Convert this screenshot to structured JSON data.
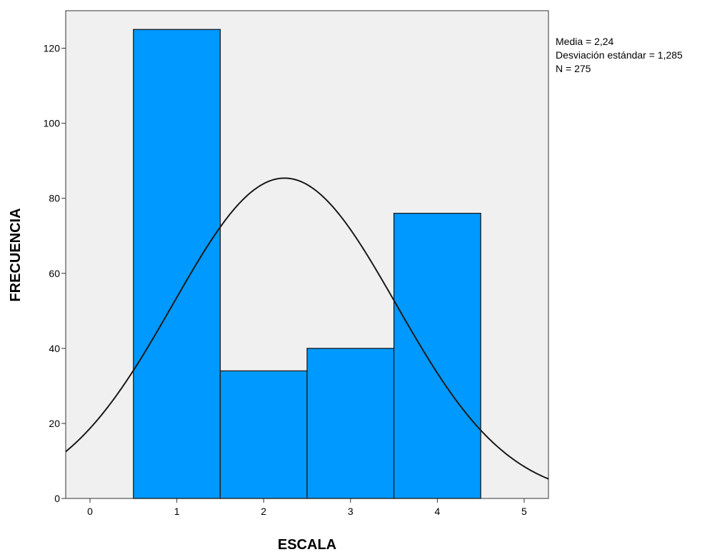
{
  "chart_data": {
    "type": "bar",
    "chart_subtype": "histogram",
    "bins": [
      {
        "x0": 0.5,
        "x1": 1.5,
        "label": "1",
        "value": 125
      },
      {
        "x0": 1.5,
        "x1": 2.5,
        "label": "2",
        "value": 34
      },
      {
        "x0": 2.5,
        "x1": 3.5,
        "label": "3",
        "value": 40
      },
      {
        "x0": 3.5,
        "x1": 4.5,
        "label": "4",
        "value": 76
      }
    ],
    "categories": [
      "1",
      "2",
      "3",
      "4"
    ],
    "values": [
      125,
      34,
      40,
      76
    ],
    "title": "",
    "xlabel": "ESCALA",
    "ylabel": "FRECUENCIA",
    "xlim": [
      -0.28,
      5.28
    ],
    "ylim": [
      0,
      130
    ],
    "x_ticks": [
      0,
      1,
      2,
      3,
      4,
      5
    ],
    "y_ticks": [
      0,
      20,
      40,
      60,
      80,
      100,
      120
    ],
    "grid": false,
    "normal_curve": {
      "mean": 2.24,
      "std": 1.285,
      "n": 275,
      "bin_width": 1
    },
    "stats_legend": {
      "placement": "top-right",
      "lines": [
        "Media = 2,24",
        "Desviación estándar = 1,285",
        "N = 275"
      ]
    },
    "colors": {
      "bar_fill": "#0099ff",
      "bar_stroke": "#1a1a1a",
      "plot_background": "#f0f0f0",
      "curve": "#1a1a1a"
    }
  }
}
